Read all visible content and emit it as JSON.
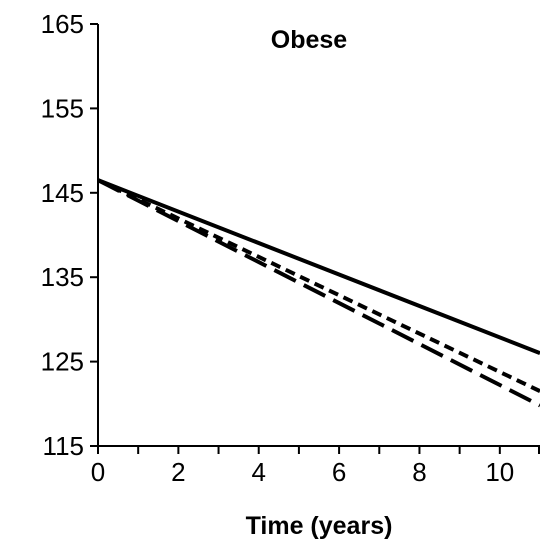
{
  "chart_data": {
    "type": "line",
    "title": "Obese",
    "xlabel": "Time (years)",
    "ylabel": "",
    "xlim": [
      0,
      11
    ],
    "ylim": [
      115,
      165
    ],
    "x_ticks": [
      0,
      2,
      4,
      6,
      8,
      10
    ],
    "x_minor_ticks": [
      1,
      3,
      5,
      7,
      9,
      11
    ],
    "y_ticks": [
      115,
      125,
      135,
      145,
      155,
      165
    ],
    "grid": false,
    "legend": "none",
    "series": [
      {
        "style": "solid",
        "color": "#000000",
        "x": [
          0,
          11
        ],
        "y": [
          146.5,
          126.0
        ]
      },
      {
        "style": "short-dash",
        "color": "#000000",
        "x": [
          0,
          11
        ],
        "y": [
          146.5,
          121.5
        ]
      },
      {
        "style": "long-dash",
        "color": "#000000",
        "x": [
          0,
          11
        ],
        "y": [
          146.5,
          119.8
        ]
      }
    ]
  }
}
